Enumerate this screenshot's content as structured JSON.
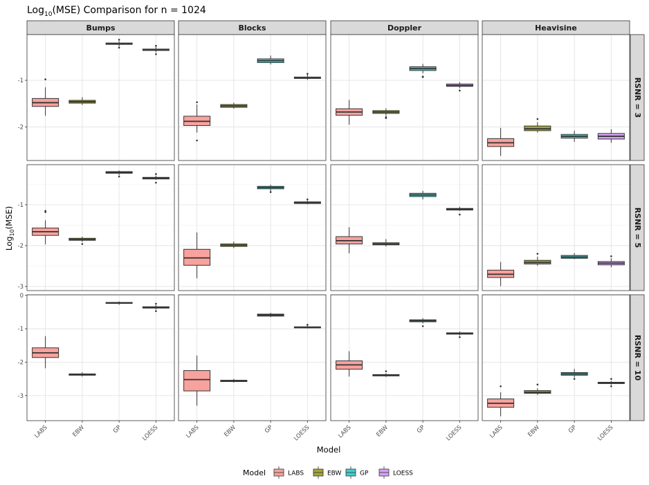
{
  "title": {
    "main": "Log",
    "sub": "10",
    "rest": "(MSE) Comparison for n =  1024"
  },
  "colors": {
    "LABS": "#f8a29e",
    "EBW": "#a3a53a",
    "GP": "#3fcfcf",
    "LOESS": "#d6a0f5"
  },
  "chart_data": {
    "type": "boxplot",
    "facet_columns": [
      "Bumps",
      "Blocks",
      "Doppler",
      "Heavisine"
    ],
    "facet_rows": [
      "RSNR = 3",
      "RSNR = 5",
      "RSNR = 10"
    ],
    "categories": [
      "LABS",
      "EBW",
      "GP",
      "LOESS"
    ],
    "xlabel": "Model",
    "ylabel_main": "Log",
    "ylabel_sub": "10",
    "ylabel_rest": "(MSE)",
    "legend": {
      "title": "Model",
      "position": "bottom",
      "entries": [
        "LABS",
        "EBW",
        "GP",
        "LOESS"
      ]
    },
    "grid": true,
    "rows": [
      {
        "label": "RSNR = 3",
        "ylim": [
          -2.72,
          -0.02
        ],
        "yticks": [
          -2,
          -1
        ],
        "ytick_labels": [
          "-2",
          "-1"
        ],
        "panels": [
          {
            "facet": "Bumps",
            "boxes": [
              {
                "model": "LABS",
                "min": -1.76,
                "q1": -1.56,
                "median": -1.48,
                "q3": -1.39,
                "max": -1.15,
                "outliers": [
                  -0.98
                ]
              },
              {
                "model": "EBW",
                "min": -1.53,
                "q1": -1.49,
                "median": -1.46,
                "q3": -1.43,
                "max": -1.36,
                "outliers": []
              },
              {
                "model": "GP",
                "min": -0.28,
                "q1": -0.23,
                "median": -0.22,
                "q3": -0.2,
                "max": -0.16,
                "outliers": [
                  -0.3,
                  -0.13
                ]
              },
              {
                "model": "LOESS",
                "min": -0.4,
                "q1": -0.36,
                "median": -0.35,
                "q3": -0.33,
                "max": -0.28,
                "outliers": [
                  -0.44,
                  -0.26
                ]
              }
            ]
          },
          {
            "facet": "Blocks",
            "boxes": [
              {
                "model": "LABS",
                "min": -2.12,
                "q1": -1.97,
                "median": -1.88,
                "q3": -1.77,
                "max": -1.52,
                "outliers": [
                  -2.29,
                  -1.47
                ]
              },
              {
                "model": "EBW",
                "min": -1.61,
                "q1": -1.58,
                "median": -1.55,
                "q3": -1.52,
                "max": -1.48,
                "outliers": []
              },
              {
                "model": "GP",
                "min": -0.66,
                "q1": -0.62,
                "median": -0.58,
                "q3": -0.54,
                "max": -0.47,
                "outliers": []
              },
              {
                "model": "LOESS",
                "min": -0.99,
                "q1": -0.96,
                "median": -0.95,
                "q3": -0.93,
                "max": -0.88,
                "outliers": [
                  -0.86
                ]
              }
            ]
          },
          {
            "facet": "Doppler",
            "boxes": [
              {
                "model": "LABS",
                "min": -1.95,
                "q1": -1.75,
                "median": -1.68,
                "q3": -1.61,
                "max": -1.42,
                "outliers": []
              },
              {
                "model": "EBW",
                "min": -1.76,
                "q1": -1.71,
                "median": -1.68,
                "q3": -1.65,
                "max": -1.6,
                "outliers": [
                  -1.79,
                  -1.81
                ]
              },
              {
                "model": "GP",
                "min": -0.85,
                "q1": -0.79,
                "median": -0.75,
                "q3": -0.71,
                "max": -0.65,
                "outliers": [
                  -0.92,
                  -0.93
                ]
              },
              {
                "model": "LOESS",
                "min": -1.17,
                "q1": -1.13,
                "median": -1.11,
                "q3": -1.08,
                "max": -1.04,
                "outliers": [
                  -1.22
                ]
              }
            ]
          },
          {
            "facet": "Heavisine",
            "boxes": [
              {
                "model": "LABS",
                "min": -2.62,
                "q1": -2.42,
                "median": -2.34,
                "q3": -2.25,
                "max": -2.02,
                "outliers": []
              },
              {
                "model": "EBW",
                "min": -2.12,
                "q1": -2.08,
                "median": -2.04,
                "q3": -1.98,
                "max": -1.9,
                "outliers": [
                  -1.83
                ]
              },
              {
                "model": "GP",
                "min": -2.32,
                "q1": -2.24,
                "median": -2.2,
                "q3": -2.16,
                "max": -2.08,
                "outliers": []
              },
              {
                "model": "LOESS",
                "min": -2.34,
                "q1": -2.26,
                "median": -2.2,
                "q3": -2.14,
                "max": -2.05,
                "outliers": []
              }
            ]
          }
        ]
      },
      {
        "label": "RSNR = 5",
        "ylim": [
          -3.1,
          -0.02
        ],
        "yticks": [
          -3,
          -2,
          -1
        ],
        "ytick_labels": [
          "-3",
          "-2",
          "-1"
        ],
        "panels": [
          {
            "facet": "Bumps",
            "boxes": [
              {
                "model": "LABS",
                "min": -1.97,
                "q1": -1.75,
                "median": -1.66,
                "q3": -1.57,
                "max": -1.38,
                "outliers": [
                  -1.18,
                  -1.15
                ]
              },
              {
                "model": "EBW",
                "min": -1.91,
                "q1": -1.87,
                "median": -1.85,
                "q3": -1.82,
                "max": -1.78,
                "outliers": [
                  -1.96
                ]
              },
              {
                "model": "GP",
                "min": -0.28,
                "q1": -0.23,
                "median": -0.21,
                "q3": -0.19,
                "max": -0.16,
                "outliers": [
                  -0.31
                ]
              },
              {
                "model": "LOESS",
                "min": -0.39,
                "q1": -0.37,
                "median": -0.35,
                "q3": -0.33,
                "max": -0.29,
                "outliers": [
                  -0.46,
                  -0.25
                ]
              }
            ]
          },
          {
            "facet": "Blocks",
            "boxes": [
              {
                "model": "LABS",
                "min": -2.8,
                "q1": -2.48,
                "median": -2.3,
                "q3": -2.09,
                "max": -1.68,
                "outliers": []
              },
              {
                "model": "EBW",
                "min": -2.06,
                "q1": -2.02,
                "median": -1.99,
                "q3": -1.96,
                "max": -1.9,
                "outliers": []
              },
              {
                "model": "GP",
                "min": -0.67,
                "q1": -0.61,
                "median": -0.58,
                "q3": -0.55,
                "max": -0.51,
                "outliers": [
                  -0.69
                ]
              },
              {
                "model": "LOESS",
                "min": -0.99,
                "q1": -0.97,
                "median": -0.95,
                "q3": -0.93,
                "max": -0.9,
                "outliers": [
                  -0.87
                ]
              }
            ]
          },
          {
            "facet": "Doppler",
            "boxes": [
              {
                "model": "LABS",
                "min": -2.19,
                "q1": -1.96,
                "median": -1.88,
                "q3": -1.78,
                "max": -1.55,
                "outliers": []
              },
              {
                "model": "EBW",
                "min": -2.02,
                "q1": -1.98,
                "median": -1.96,
                "q3": -1.93,
                "max": -1.84,
                "outliers": []
              },
              {
                "model": "GP",
                "min": -0.87,
                "q1": -0.8,
                "median": -0.76,
                "q3": -0.72,
                "max": -0.66,
                "outliers": []
              },
              {
                "model": "LOESS",
                "min": -1.15,
                "q1": -1.13,
                "median": -1.11,
                "q3": -1.09,
                "max": -1.05,
                "outliers": [
                  -1.24
                ]
              }
            ]
          },
          {
            "facet": "Heavisine",
            "boxes": [
              {
                "model": "LABS",
                "min": -2.99,
                "q1": -2.78,
                "median": -2.7,
                "q3": -2.6,
                "max": -2.4,
                "outliers": []
              },
              {
                "model": "EBW",
                "min": -2.49,
                "q1": -2.45,
                "median": -2.41,
                "q3": -2.36,
                "max": -2.27,
                "outliers": [
                  -2.2
                ]
              },
              {
                "model": "GP",
                "min": -2.33,
                "q1": -2.31,
                "median": -2.28,
                "q3": -2.24,
                "max": -2.18,
                "outliers": []
              },
              {
                "model": "LOESS",
                "min": -2.53,
                "q1": -2.47,
                "median": -2.43,
                "q3": -2.39,
                "max": -2.31,
                "outliers": [
                  -2.26
                ]
              }
            ]
          }
        ]
      },
      {
        "label": "RSNR = 10",
        "ylim": [
          -3.75,
          0.02
        ],
        "yticks": [
          -3,
          -2,
          -1,
          0
        ],
        "ytick_labels": [
          "-3",
          "-2",
          "-1",
          "0"
        ],
        "panels": [
          {
            "facet": "Bumps",
            "boxes": [
              {
                "model": "LABS",
                "min": -2.18,
                "q1": -1.86,
                "median": -1.72,
                "q3": -1.57,
                "max": -1.22,
                "outliers": []
              },
              {
                "model": "EBW",
                "min": -2.43,
                "q1": -2.39,
                "median": -2.37,
                "q3": -2.35,
                "max": -2.3,
                "outliers": []
              },
              {
                "model": "GP",
                "min": -0.28,
                "q1": -0.24,
                "median": -0.23,
                "q3": -0.21,
                "max": -0.18,
                "outliers": []
              },
              {
                "model": "LOESS",
                "min": -0.42,
                "q1": -0.38,
                "median": -0.36,
                "q3": -0.34,
                "max": -0.29,
                "outliers": [
                  -0.47,
                  -0.25
                ]
              }
            ]
          },
          {
            "facet": "Blocks",
            "boxes": [
              {
                "model": "LABS",
                "min": -3.3,
                "q1": -2.86,
                "median": -2.52,
                "q3": -2.25,
                "max": -1.8,
                "outliers": []
              },
              {
                "model": "EBW",
                "min": -2.61,
                "q1": -2.58,
                "median": -2.56,
                "q3": -2.54,
                "max": -2.5,
                "outliers": []
              },
              {
                "model": "GP",
                "min": -0.65,
                "q1": -0.62,
                "median": -0.59,
                "q3": -0.56,
                "max": -0.52,
                "outliers": []
              },
              {
                "model": "LOESS",
                "min": -0.99,
                "q1": -0.97,
                "median": -0.96,
                "q3": -0.94,
                "max": -0.91,
                "outliers": [
                  -0.88
                ]
              }
            ]
          },
          {
            "facet": "Doppler",
            "boxes": [
              {
                "model": "LABS",
                "min": -2.43,
                "q1": -2.21,
                "median": -2.08,
                "q3": -1.96,
                "max": -1.67,
                "outliers": []
              },
              {
                "model": "EBW",
                "min": -2.44,
                "q1": -2.41,
                "median": -2.39,
                "q3": -2.37,
                "max": -2.33,
                "outliers": [
                  -2.27
                ]
              },
              {
                "model": "GP",
                "min": -0.84,
                "q1": -0.79,
                "median": -0.76,
                "q3": -0.73,
                "max": -0.68,
                "outliers": [
                  -0.92
                ]
              },
              {
                "model": "LOESS",
                "min": -1.2,
                "q1": -1.16,
                "median": -1.14,
                "q3": -1.12,
                "max": -1.08,
                "outliers": [
                  -1.25
                ]
              }
            ]
          },
          {
            "facet": "Heavisine",
            "boxes": [
              {
                "model": "LABS",
                "min": -3.62,
                "q1": -3.35,
                "median": -3.23,
                "q3": -3.1,
                "max": -2.9,
                "outliers": [
                  -2.72
                ]
              },
              {
                "model": "EBW",
                "min": -2.98,
                "q1": -2.93,
                "median": -2.9,
                "q3": -2.85,
                "max": -2.78,
                "outliers": [
                  -2.67
                ]
              },
              {
                "model": "GP",
                "min": -2.46,
                "q1": -2.39,
                "median": -2.35,
                "q3": -2.31,
                "max": -2.2,
                "outliers": [
                  -2.5
                ]
              },
              {
                "model": "LOESS",
                "min": -2.68,
                "q1": -2.64,
                "median": -2.62,
                "q3": -2.6,
                "max": -2.56,
                "outliers": [
                  -2.72,
                  -2.5
                ]
              }
            ]
          }
        ]
      }
    ]
  }
}
